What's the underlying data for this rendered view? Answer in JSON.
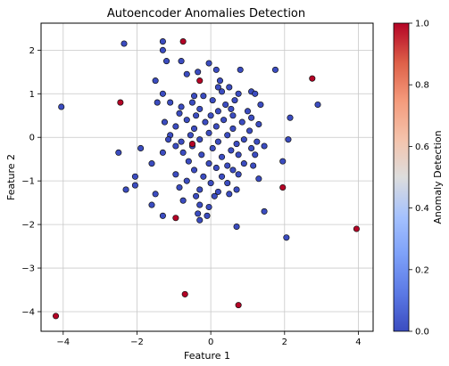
{
  "chart_data": {
    "type": "scatter",
    "title": "Autoencoder Anomalies Detection",
    "xlabel": "Feature 1",
    "ylabel": "Feature 2",
    "xlim": [
      -4.6,
      4.4
    ],
    "ylim": [
      -4.45,
      2.62
    ],
    "xticks": [
      -4,
      -2,
      0,
      2,
      4
    ],
    "yticks": [
      -4,
      -3,
      -2,
      -1,
      0,
      1,
      2
    ],
    "grid": true,
    "colorbar": {
      "label": "Anomaly Detection",
      "range": [
        0.0,
        1.0
      ],
      "ticks": [
        "0.0",
        "0.2",
        "0.4",
        "0.6",
        "0.8",
        "1.0"
      ],
      "colormap": "coolwarm",
      "low_color": "#3b4cc0",
      "high_color": "#b40426"
    },
    "normal_points": [
      [
        -2.35,
        2.15
      ],
      [
        -1.3,
        2.2
      ],
      [
        -1.3,
        2.0
      ],
      [
        -1.2,
        1.75
      ],
      [
        -0.8,
        1.75
      ],
      [
        -0.05,
        1.7
      ],
      [
        -0.65,
        1.45
      ],
      [
        -0.35,
        1.5
      ],
      [
        0.15,
        1.55
      ],
      [
        0.8,
        1.55
      ],
      [
        1.75,
        1.55
      ],
      [
        0.25,
        1.3
      ],
      [
        -1.5,
        1.3
      ],
      [
        -1.3,
        1.0
      ],
      [
        0.2,
        1.15
      ],
      [
        0.5,
        1.15
      ],
      [
        1.1,
        1.05
      ],
      [
        0.3,
        1.05
      ],
      [
        0.75,
        1.0
      ],
      [
        1.2,
        1.0
      ],
      [
        -0.45,
        0.95
      ],
      [
        -0.2,
        0.95
      ],
      [
        0.05,
        0.85
      ],
      [
        0.65,
        0.85
      ],
      [
        -1.45,
        0.8
      ],
      [
        -1.1,
        0.8
      ],
      [
        -0.5,
        0.8
      ],
      [
        0.4,
        0.75
      ],
      [
        1.35,
        0.75
      ],
      [
        2.9,
        0.75
      ],
      [
        -4.05,
        0.7
      ],
      [
        -0.8,
        0.7
      ],
      [
        -0.3,
        0.65
      ],
      [
        0.55,
        0.65
      ],
      [
        1.0,
        0.6
      ],
      [
        0.2,
        0.6
      ],
      [
        -0.85,
        0.55
      ],
      [
        -0.4,
        0.5
      ],
      [
        0.0,
        0.5
      ],
      [
        0.6,
        0.5
      ],
      [
        1.1,
        0.45
      ],
      [
        2.15,
        0.45
      ],
      [
        -1.25,
        0.35
      ],
      [
        -0.65,
        0.4
      ],
      [
        -0.15,
        0.35
      ],
      [
        0.35,
        0.4
      ],
      [
        0.85,
        0.35
      ],
      [
        1.3,
        0.3
      ],
      [
        -0.95,
        0.25
      ],
      [
        -0.45,
        0.2
      ],
      [
        0.15,
        0.25
      ],
      [
        0.6,
        0.2
      ],
      [
        1.05,
        0.15
      ],
      [
        -1.1,
        0.05
      ],
      [
        -0.55,
        0.05
      ],
      [
        -0.05,
        0.1
      ],
      [
        0.45,
        0.05
      ],
      [
        0.9,
        -0.05
      ],
      [
        -1.15,
        -0.05
      ],
      [
        -0.8,
        -0.1
      ],
      [
        -0.3,
        -0.05
      ],
      [
        0.2,
        -0.1
      ],
      [
        0.7,
        -0.15
      ],
      [
        1.25,
        -0.1
      ],
      [
        2.1,
        -0.05
      ],
      [
        -0.95,
        -0.2
      ],
      [
        -0.5,
        -0.2
      ],
      [
        0.05,
        -0.25
      ],
      [
        0.55,
        -0.3
      ],
      [
        1.1,
        -0.25
      ],
      [
        1.45,
        -0.2
      ],
      [
        -1.9,
        -0.25
      ],
      [
        -2.5,
        -0.35
      ],
      [
        -1.3,
        -0.35
      ],
      [
        -0.75,
        -0.35
      ],
      [
        -0.25,
        -0.4
      ],
      [
        0.3,
        -0.45
      ],
      [
        0.75,
        -0.4
      ],
      [
        1.2,
        -0.4
      ],
      [
        -1.6,
        -0.6
      ],
      [
        -0.6,
        -0.55
      ],
      [
        -0.05,
        -0.6
      ],
      [
        0.45,
        -0.65
      ],
      [
        0.9,
        -0.6
      ],
      [
        1.95,
        -0.55
      ],
      [
        -0.45,
        -0.75
      ],
      [
        0.15,
        -0.7
      ],
      [
        0.6,
        -0.75
      ],
      [
        1.15,
        -0.65
      ],
      [
        -0.95,
        -0.85
      ],
      [
        -0.2,
        -0.9
      ],
      [
        0.3,
        -0.9
      ],
      [
        0.75,
        -0.85
      ],
      [
        -2.05,
        -0.9
      ],
      [
        -0.65,
        -1.0
      ],
      [
        0.0,
        -1.05
      ],
      [
        0.45,
        -1.05
      ],
      [
        1.3,
        -0.95
      ],
      [
        -2.05,
        -1.1
      ],
      [
        -0.85,
        -1.15
      ],
      [
        -0.3,
        -1.2
      ],
      [
        0.2,
        -1.25
      ],
      [
        0.7,
        -1.2
      ],
      [
        -2.3,
        -1.2
      ],
      [
        -1.5,
        -1.3
      ],
      [
        -0.4,
        -1.35
      ],
      [
        0.1,
        -1.35
      ],
      [
        0.5,
        -1.3
      ],
      [
        -1.6,
        -1.55
      ],
      [
        -0.75,
        -1.45
      ],
      [
        -0.3,
        -1.55
      ],
      [
        -0.05,
        -1.6
      ],
      [
        1.45,
        -1.7
      ],
      [
        -1.3,
        -1.8
      ],
      [
        -0.35,
        -1.75
      ],
      [
        -0.1,
        -1.8
      ],
      [
        -0.3,
        -1.9
      ],
      [
        0.7,
        -2.05
      ],
      [
        2.05,
        -2.3
      ]
    ],
    "anomaly_points": [
      [
        -0.75,
        2.2
      ],
      [
        -0.3,
        1.3
      ],
      [
        -2.45,
        0.8
      ],
      [
        2.75,
        1.35
      ],
      [
        -0.5,
        -0.15
      ],
      [
        1.95,
        -1.15
      ],
      [
        -0.95,
        -1.85
      ],
      [
        3.95,
        -2.1
      ],
      [
        -0.7,
        -3.6
      ],
      [
        0.75,
        -3.85
      ],
      [
        -4.2,
        -4.1
      ]
    ]
  }
}
